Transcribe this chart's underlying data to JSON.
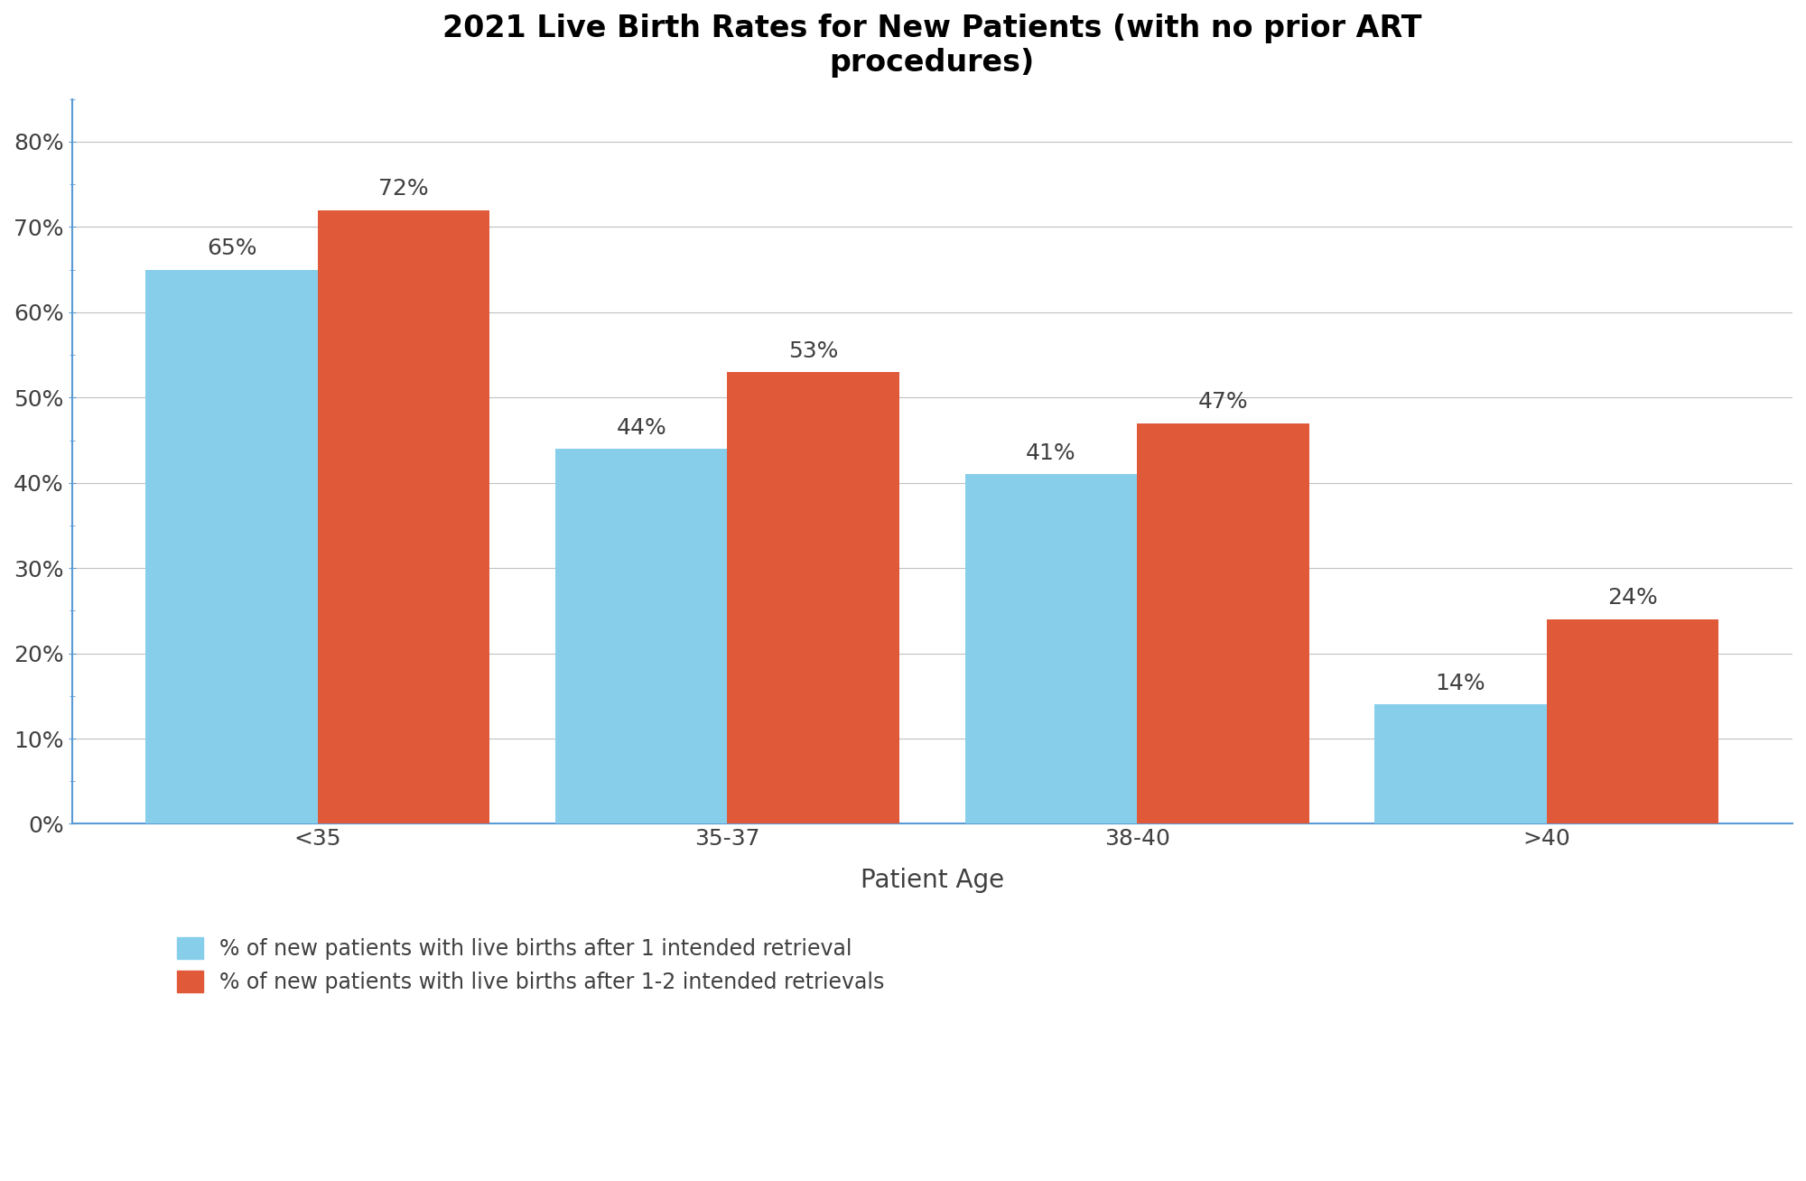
{
  "title": "2021 Live Birth Rates for New Patients (with no prior ART\nprocedures)",
  "xlabel": "Patient Age",
  "categories": [
    "<35",
    "35-37",
    "38-40",
    ">40"
  ],
  "series1_values": [
    65,
    44,
    41,
    14
  ],
  "series2_values": [
    72,
    53,
    47,
    24
  ],
  "series1_color": "#87CEEB",
  "series2_color": "#E05A3A",
  "series1_label": "% of new patients with live births after 1 intended retrieval",
  "series2_label": "% of new patients with live births after 1-2 intended retrievals",
  "yticks": [
    0,
    10,
    20,
    30,
    40,
    50,
    60,
    70,
    80
  ],
  "ytick_labels": [
    "0%",
    "10%",
    "20%",
    "30%",
    "40%",
    "50%",
    "60%",
    "70%",
    "80%"
  ],
  "ylim": [
    0,
    85
  ],
  "bar_width": 0.42,
  "background_color": "#ffffff",
  "grid_color": "#c0c0c0",
  "spine_color": "#5b9bd5",
  "title_fontsize": 24,
  "axis_label_fontsize": 20,
  "tick_fontsize": 18,
  "bar_label_fontsize": 18,
  "legend_fontsize": 17,
  "text_color": "#404040"
}
